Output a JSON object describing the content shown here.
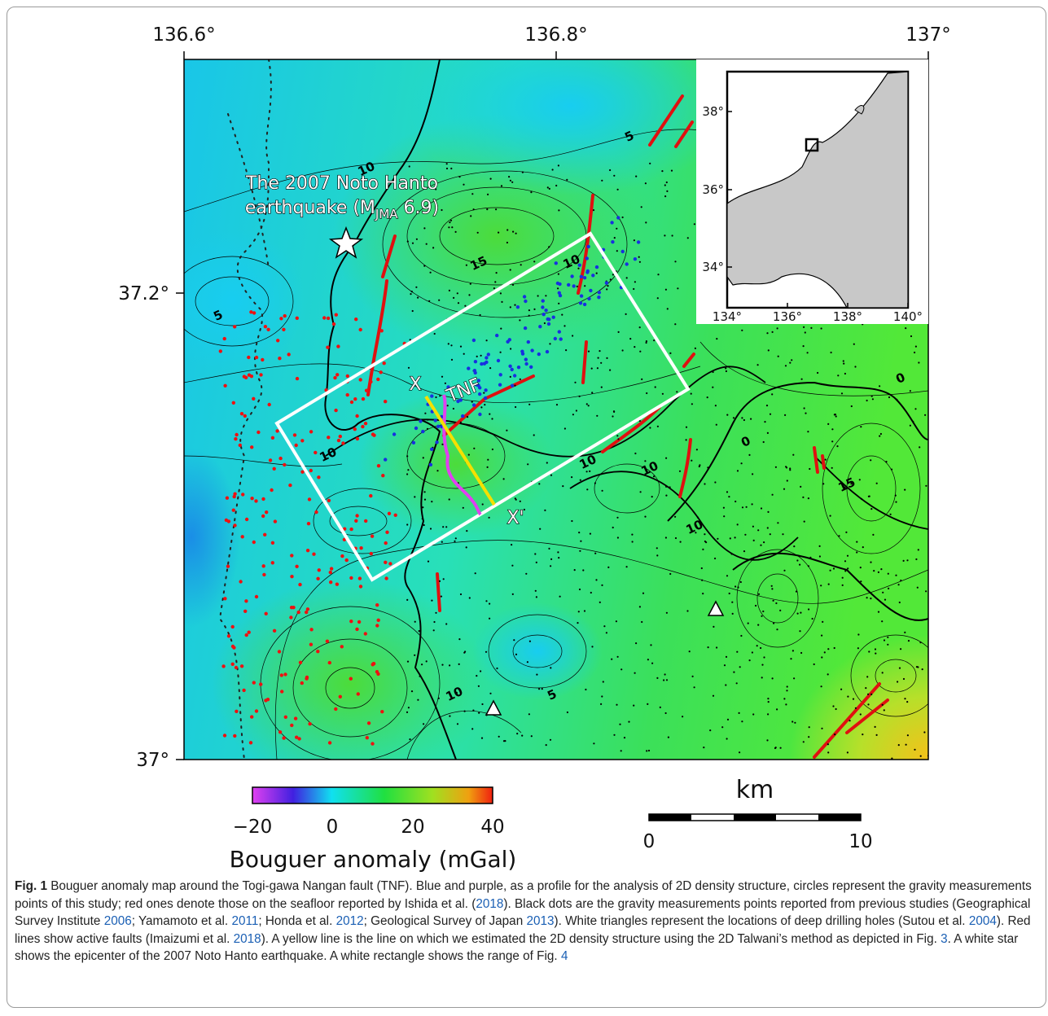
{
  "map": {
    "lon_ticks": [
      "136.6°",
      "136.8°",
      "137°"
    ],
    "lat_ticks": [
      "37.2°",
      "37°"
    ],
    "event_label": {
      "line1": "The 2007 Noto Hanto",
      "line2_start": "earthquake (M",
      "subscript": "JMA",
      "line2_end": " 6.9)"
    },
    "fault_label": "TNF",
    "profile_start": "X",
    "profile_end": "X'",
    "contour_labels": [
      "5",
      "10",
      "15",
      "10",
      "5",
      "10",
      "10",
      "10",
      "0",
      "0",
      "15",
      "10",
      "10",
      "5"
    ]
  },
  "inset": {
    "lat_ticks": [
      "38°",
      "36°",
      "34°"
    ],
    "lon_ticks": [
      "134°",
      "136°",
      "138°",
      "140°"
    ]
  },
  "colorbar": {
    "ticks": [
      "−20",
      "0",
      "20",
      "40"
    ],
    "label": "Bouguer anomaly (mGal)"
  },
  "scalebar": {
    "unit": "km",
    "ticks": [
      "0",
      "10"
    ]
  },
  "caption": {
    "label": "Fig. 1",
    "segments": [
      {
        "text": " Bouguer anomaly map around the Togi-gawa Nangan fault (TNF). Blue and purple, as a profile for the analysis of 2D density structure, circles represent the gravity measurements points of this study; red ones denote those on the seafloor reported by Ishida et al. ("
      },
      {
        "text": "2018",
        "link": true
      },
      {
        "text": "). Black dots are the gravity measurements points reported from previous studies (Geographical Survey Institute "
      },
      {
        "text": "2006",
        "link": true
      },
      {
        "text": "; Yamamoto et al. "
      },
      {
        "text": "2011",
        "link": true
      },
      {
        "text": "; Honda et al. "
      },
      {
        "text": "2012",
        "link": true
      },
      {
        "text": "; Geological Survey of Japan "
      },
      {
        "text": "2013",
        "link": true
      },
      {
        "text": "). White triangles represent the locations of deep drilling holes (Sutou et al. "
      },
      {
        "text": "2004",
        "link": true
      },
      {
        "text": "). Red lines show active faults (Imaizumi et al. "
      },
      {
        "text": "2018",
        "link": true
      },
      {
        "text": "). A yellow line is the line on which we estimated the 2D density structure using the 2D Talwani’s method as depicted in Fig. "
      },
      {
        "text": "3",
        "link": true
      },
      {
        "text": ". A white star shows the epicenter of the 2007 Noto Hanto earthquake. A white rectangle shows the range of Fig. "
      },
      {
        "text": "4",
        "link": true
      }
    ]
  }
}
